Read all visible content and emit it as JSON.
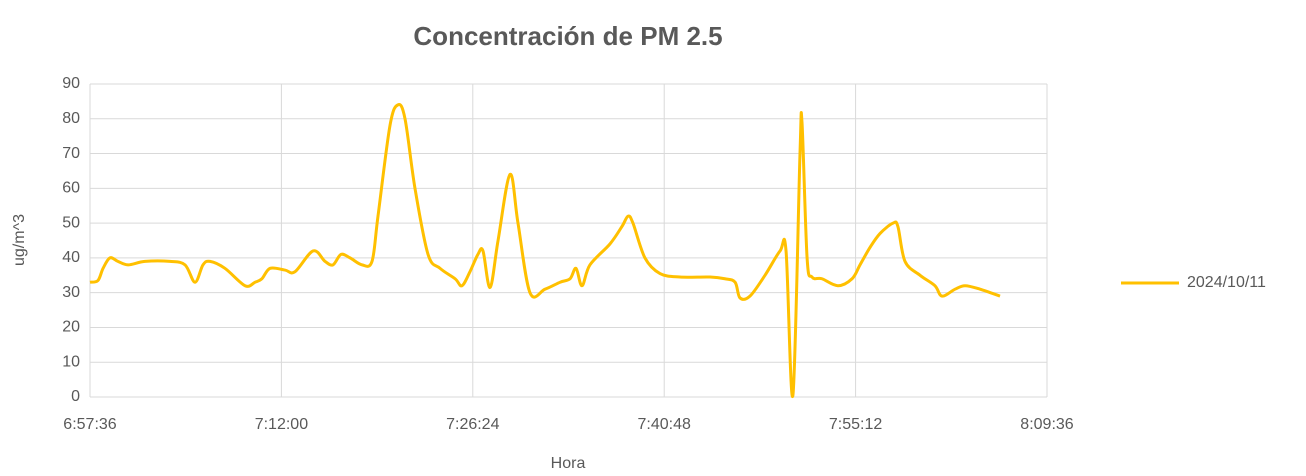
{
  "chart_data": {
    "type": "line",
    "title": "Concentración de PM 2.5",
    "x_label": "Hora",
    "y_label": "ug/m^3",
    "x": [
      "6:57:36",
      "6:58:12",
      "6:58:35",
      "6:59:06",
      "6:59:42",
      "7:00:28",
      "7:01:44",
      "7:03:37",
      "7:04:45",
      "7:05:30",
      "7:06:06",
      "7:06:38",
      "7:07:45",
      "7:09:16",
      "7:10:01",
      "7:10:32",
      "7:11:09",
      "7:12:16",
      "7:13:01",
      "7:14:23",
      "7:15:17",
      "7:15:53",
      "7:16:29",
      "7:17:10",
      "7:18:04",
      "7:18:49",
      "7:19:16",
      "7:20:10",
      "7:20:46",
      "7:21:18",
      "7:22:03",
      "7:23:02",
      "7:23:56",
      "7:25:04",
      "7:25:35",
      "7:26:11",
      "7:26:47",
      "7:27:10",
      "7:27:42",
      "7:28:18",
      "7:29:12",
      "7:29:48",
      "7:30:42",
      "7:31:50",
      "7:32:58",
      "7:33:43",
      "7:34:10",
      "7:34:37",
      "7:35:13",
      "7:36:43",
      "7:37:37",
      "7:38:05",
      "7:38:27",
      "7:39:21",
      "7:40:29",
      "7:41:59",
      "7:44:15",
      "7:45:22",
      "7:46:08",
      "7:46:30",
      "7:47:15",
      "7:48:23",
      "7:49:31",
      "7:49:58",
      "7:50:29",
      "7:51:01",
      "7:51:10",
      "7:51:33",
      "7:51:55",
      "7:52:40",
      "7:53:52",
      "7:54:56",
      "7:55:32",
      "7:56:17",
      "7:57:02",
      "7:58:01",
      "7:58:23",
      "7:58:55",
      "8:00:03",
      "8:01:10",
      "8:01:42",
      "8:02:41",
      "8:03:26",
      "8:04:34",
      "8:06:04"
    ],
    "series": [
      {
        "name": "2024/10/11",
        "color": "#FFC000",
        "values": [
          33,
          33.5,
          37,
          40,
          39,
          38,
          39,
          39,
          38,
          33,
          38,
          39,
          37,
          32,
          33,
          34,
          37,
          36.5,
          36,
          42,
          39,
          38,
          41,
          40,
          38,
          39,
          52,
          78,
          84,
          80,
          60,
          41,
          37,
          34,
          32,
          36,
          41,
          42,
          31.5,
          45,
          64,
          50,
          30,
          31,
          33,
          34,
          37,
          32,
          38,
          44,
          49,
          52,
          50,
          40,
          35.5,
          34.5,
          34.5,
          34,
          33,
          28.5,
          29,
          35,
          42,
          42,
          0.5,
          70,
          79,
          40,
          34.5,
          34,
          32,
          34,
          38,
          43,
          47,
          50,
          49,
          39,
          35,
          32,
          29,
          31,
          32,
          31,
          29
        ]
      }
    ],
    "xlim": [
      "6:57:36",
      "8:09:36"
    ],
    "xticks": [
      "6:57:36",
      "7:12:00",
      "7:26:24",
      "7:40:48",
      "7:55:12",
      "8:09:36"
    ],
    "ylim": [
      0,
      90
    ],
    "yticks": [
      0,
      10,
      20,
      30,
      40,
      50,
      60,
      70,
      80,
      90
    ],
    "grid": true,
    "legend": "right"
  }
}
